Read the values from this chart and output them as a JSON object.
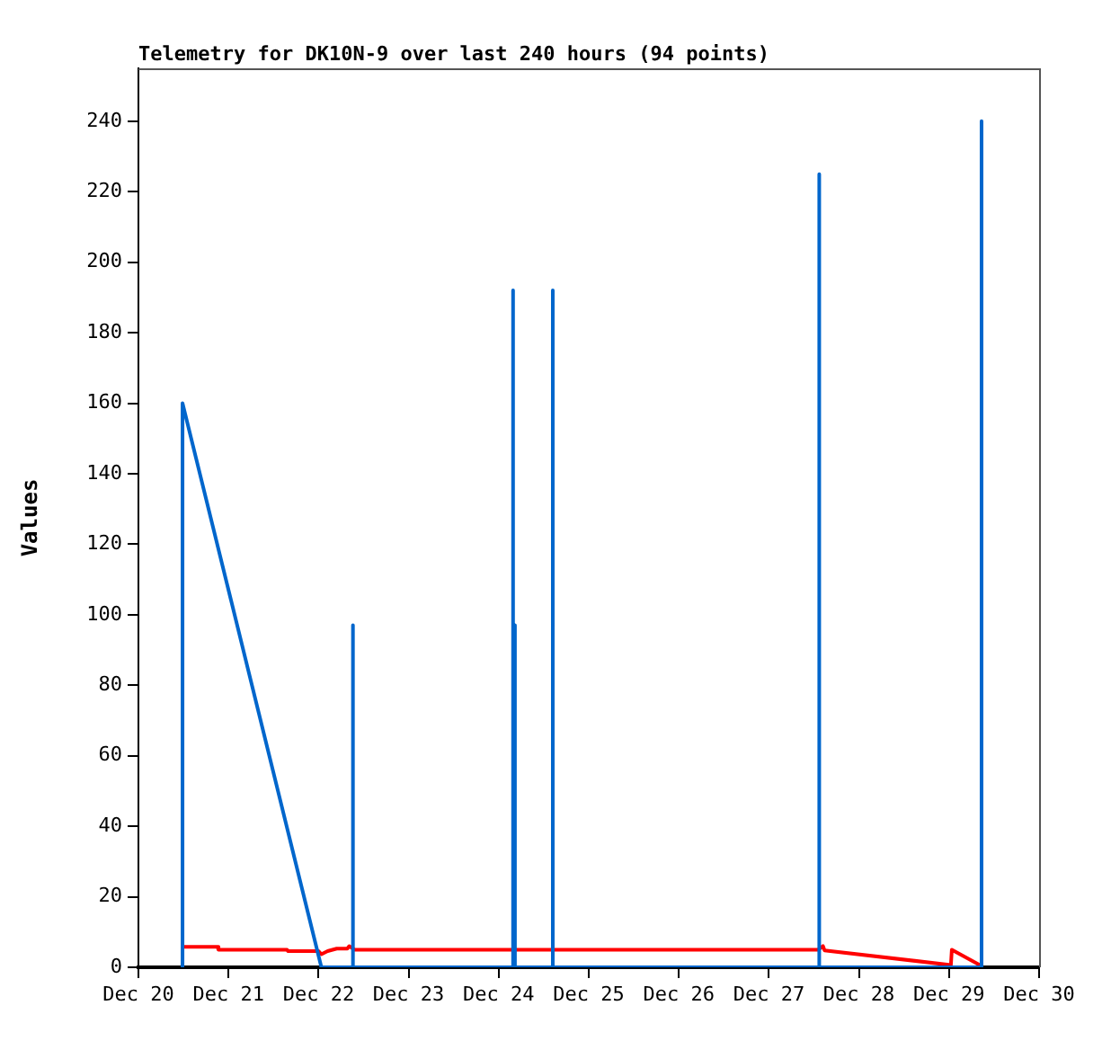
{
  "chart_data": {
    "type": "line",
    "title": "Telemetry for DK10N-9 over last 240 hours (94 points)",
    "ylabel": "Values",
    "xlim": [
      "--12-20",
      "--12-30"
    ],
    "xticks": [
      {
        "value": "--12-20",
        "label": "Dec 20"
      },
      {
        "value": "--12-21",
        "label": "Dec 21"
      },
      {
        "value": "--12-22",
        "label": "Dec 22"
      },
      {
        "value": "--12-23",
        "label": "Dec 23"
      },
      {
        "value": "--12-24",
        "label": "Dec 24"
      },
      {
        "value": "--12-25",
        "label": "Dec 25"
      },
      {
        "value": "--12-26",
        "label": "Dec 26"
      },
      {
        "value": "--12-27",
        "label": "Dec 27"
      },
      {
        "value": "--12-28",
        "label": "Dec 28"
      },
      {
        "value": "--12-29",
        "label": "Dec 29"
      },
      {
        "value": "--12-30",
        "label": "Dec 30"
      }
    ],
    "ylim": [
      0,
      255
    ],
    "yticks": [
      0,
      20,
      40,
      60,
      80,
      100,
      120,
      140,
      160,
      180,
      200,
      220,
      240
    ],
    "grid": false,
    "legend": false,
    "series": [
      {
        "color": "#0066cc",
        "x": [
          "--12-20T11:45",
          "--12-20T11:45",
          "--12-22T00:45",
          "--12-22T09:10",
          "--12-22T09:10",
          "--12-22T09:10",
          "--12-24T03:50",
          "--12-24T03:50",
          "--12-24T03:50",
          "--12-24T04:20",
          "--12-24T04:20",
          "--12-24T04:20",
          "--12-24T14:25",
          "--12-24T14:25",
          "--12-24T14:25",
          "--12-27T13:25",
          "--12-27T13:25",
          "--12-27T13:25",
          "--12-29T08:40",
          "--12-29T08:40",
          "--12-29T08:40"
        ],
        "values": [
          0,
          160,
          0,
          0,
          97,
          0,
          0,
          192,
          0,
          0,
          97,
          0,
          0,
          192,
          0,
          0,
          225,
          0,
          0,
          240,
          0
        ]
      },
      {
        "color": "#ff0000",
        "x": [
          "--12-20T11:45",
          "--12-20T21:05",
          "--12-20T21:20",
          "--12-21T15:35",
          "--12-21T15:50",
          "--12-22T00:00",
          "--12-22T00:45",
          "--12-22T02:25",
          "--12-22T04:50",
          "--12-22T07:40",
          "--12-22T08:10",
          "--12-22T09:35",
          "--12-27T13:10",
          "--12-27T14:25",
          "--12-27T14:50",
          "--12-29T00:00",
          "--12-29T00:30",
          "--12-29T00:45",
          "--12-29T08:25"
        ],
        "values": [
          5.8,
          5.8,
          5.0,
          5.0,
          4.6,
          4.6,
          3.7,
          4.6,
          5.3,
          5.3,
          6.0,
          5.0,
          5.0,
          6.0,
          4.8,
          0.7,
          0.7,
          5.0,
          0.5
        ]
      }
    ]
  }
}
